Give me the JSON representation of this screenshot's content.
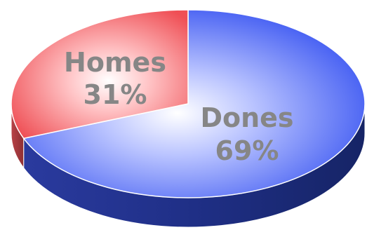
{
  "chart_data": {
    "type": "pie",
    "style": "3d",
    "slices": [
      {
        "label": "Dones",
        "value": 69,
        "value_text": "69%",
        "color": "#3f5cf2",
        "side_color": "#26369a"
      },
      {
        "label": "Homes",
        "value": 31,
        "value_text": "31%",
        "color": "#f25e63",
        "side_color": "#a83b40"
      }
    ],
    "legend": "none",
    "grid": false,
    "title": ""
  }
}
